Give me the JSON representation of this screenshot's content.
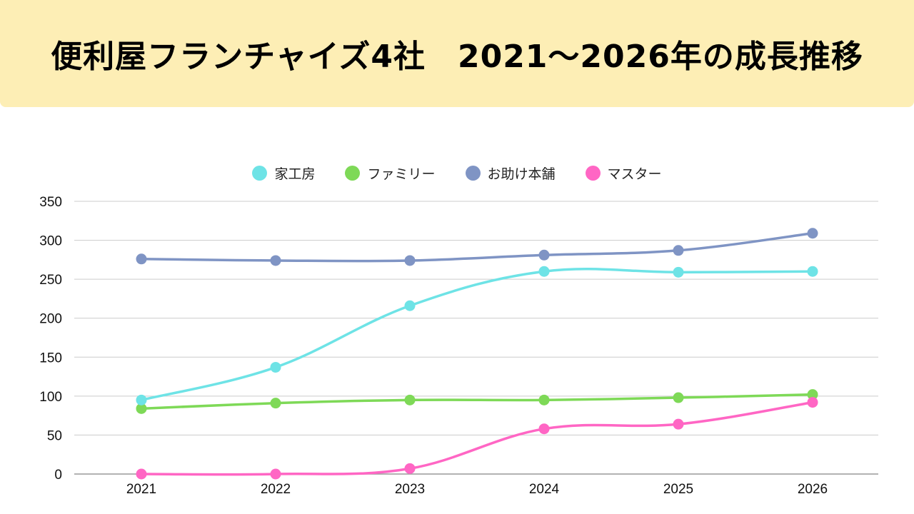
{
  "header": {
    "title": "便利屋フランチャイズ4社　2021〜2026年の成長推移"
  },
  "colors": {
    "banner_background": "#fdeeb5",
    "grid": "#cccccc",
    "axis": "#999999"
  },
  "chart_data": {
    "type": "line",
    "title": "便利屋フランチャイズ4社　2021〜2026年の成長推移",
    "xlabel": "",
    "ylabel": "",
    "categories": [
      "2021",
      "2022",
      "2023",
      "2024",
      "2025",
      "2026"
    ],
    "ylim": [
      0,
      350
    ],
    "yticks": [
      "0",
      "50",
      "100",
      "150",
      "200",
      "250",
      "300",
      "350"
    ],
    "grid": true,
    "smooth": true,
    "legend_position": "top-center",
    "series": [
      {
        "name": "家工房",
        "color": "#6ee3e6",
        "values": [
          95,
          137,
          216,
          260,
          259,
          260
        ]
      },
      {
        "name": "ファミリー",
        "color": "#7ed957",
        "values": [
          84,
          91,
          95,
          95,
          98,
          102
        ]
      },
      {
        "name": "お助け本舗",
        "color": "#7f94c4",
        "values": [
          276,
          274,
          274,
          281,
          287,
          309
        ]
      },
      {
        "name": "マスター",
        "color": "#ff66c4",
        "values": [
          0,
          0,
          7,
          58,
          64,
          92
        ]
      }
    ]
  }
}
